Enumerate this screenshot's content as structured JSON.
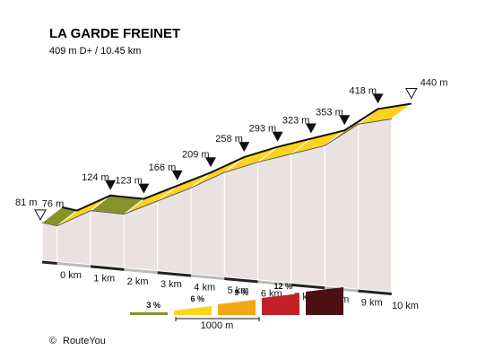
{
  "chart_data": {
    "type": "area",
    "title": "LA GARDE FREINET",
    "subtitle": "409 m D+ / 10.45 km",
    "x_unit": "km",
    "y_unit": "m",
    "xlim": [
      0,
      10.45
    ],
    "points": [
      {
        "km": 0,
        "elev": 81,
        "label": "81 m",
        "marker": "start"
      },
      {
        "km": 0.45,
        "elev": 76,
        "label": "76 m",
        "marker": "none"
      },
      {
        "km": 1.45,
        "elev": 124,
        "label": "124 m",
        "marker": "down"
      },
      {
        "km": 2.45,
        "elev": 123,
        "label": "123 m",
        "marker": "down"
      },
      {
        "km": 3.45,
        "elev": 166,
        "label": "166 m",
        "marker": "down"
      },
      {
        "km": 4.45,
        "elev": 209,
        "label": "209 m",
        "marker": "down"
      },
      {
        "km": 5.45,
        "elev": 258,
        "label": "258 m",
        "marker": "down"
      },
      {
        "km": 6.45,
        "elev": 293,
        "label": "293 m",
        "marker": "down"
      },
      {
        "km": 7.45,
        "elev": 323,
        "label": "323 m",
        "marker": "down"
      },
      {
        "km": 8.45,
        "elev": 353,
        "label": "353 m",
        "marker": "down"
      },
      {
        "km": 9.45,
        "elev": 418,
        "label": "418 m",
        "marker": "down"
      },
      {
        "km": 10.45,
        "elev": 440,
        "label": "440 m",
        "marker": "end"
      }
    ],
    "segment_colors": [
      "#86922a",
      "#ffd21e",
      "#86922a",
      "#ffd21e",
      "#ffd21e",
      "#ffd21e",
      "#ffd21e",
      "#ffd21e",
      "#ffd21e",
      "#f0a815",
      "#ffd21e"
    ],
    "x_ticks": [
      "0 km",
      "1 km",
      "2 km",
      "3 km",
      "4 km",
      "5 km",
      "6 km",
      "7 km",
      "8 km",
      "9 km",
      "10 km"
    ],
    "legend": {
      "items": [
        {
          "label": "3 %",
          "color": "#86922a"
        },
        {
          "label": "6 %",
          "color": "#ffd21e"
        },
        {
          "label": "9 %",
          "color": "#f0a815"
        },
        {
          "label": "12 %",
          "color": "#c4202a"
        },
        {
          "label": "",
          "color": "#4a1113"
        }
      ],
      "scale_label": "1000 m"
    }
  },
  "credit": {
    "symbol": "©",
    "text": "RouteYou"
  }
}
